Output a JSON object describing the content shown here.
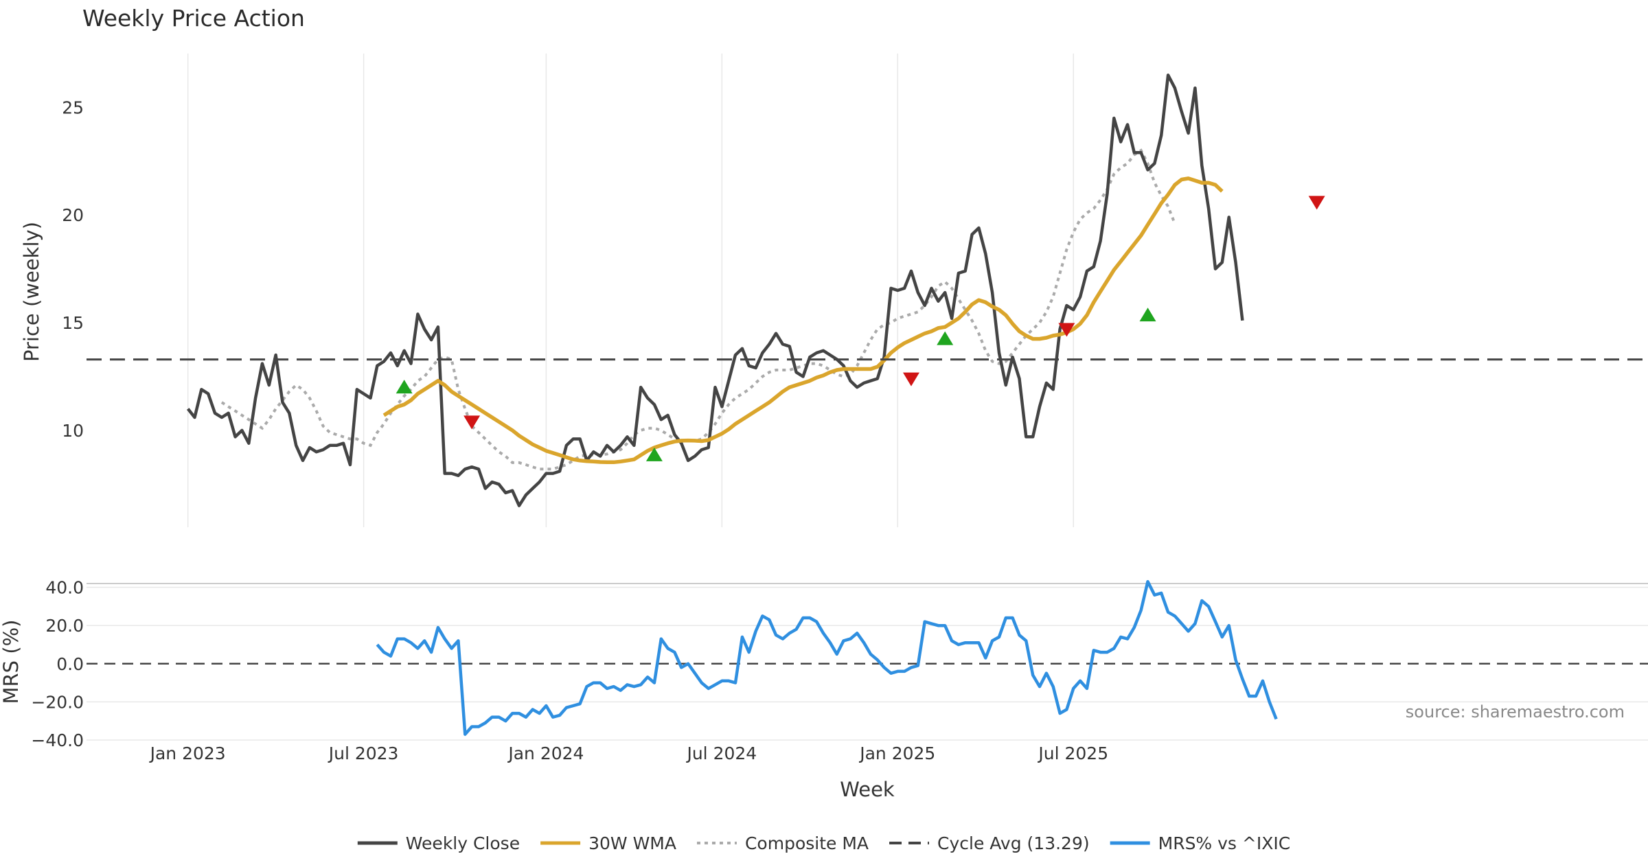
{
  "chart_data": [
    {
      "type": "line",
      "title": "Weekly Price Action",
      "ylabel": "Price (weekly)",
      "ylim": [
        5.5,
        27.5
      ],
      "yticks": [
        10,
        15,
        20,
        25
      ],
      "xlim": [
        -15,
        216
      ],
      "x_units": "weeks since Jan 2023",
      "vgrid_x": [
        0,
        26,
        53,
        79,
        105,
        131
      ],
      "series": [
        {
          "name": "Weekly Close",
          "color": "#444444",
          "values": [
            11.0,
            10.6,
            11.9,
            11.7,
            10.8,
            10.6,
            10.8,
            9.7,
            10.0,
            9.4,
            11.5,
            13.1,
            12.1,
            13.5,
            11.3,
            10.8,
            9.3,
            8.6,
            9.2,
            9.0,
            9.1,
            9.3,
            9.3,
            9.4,
            8.4,
            11.9,
            11.7,
            11.5,
            13.0,
            13.2,
            13.6,
            13.0,
            13.7,
            13.1,
            15.4,
            14.7,
            14.2,
            14.8,
            8.0,
            8.0,
            7.9,
            8.2,
            8.3,
            8.2,
            7.3,
            7.6,
            7.5,
            7.1,
            7.2,
            6.5,
            7.0,
            7.3,
            7.6,
            8.0,
            8.0,
            8.1,
            9.3,
            9.6,
            9.6,
            8.6,
            9.0,
            8.8,
            9.3,
            9.0,
            9.3,
            9.7,
            9.3,
            12.0,
            11.5,
            11.2,
            10.5,
            10.7,
            9.8,
            9.4,
            8.6,
            8.8,
            9.1,
            9.2,
            12.0,
            11.1,
            12.3,
            13.5,
            13.8,
            13.0,
            12.9,
            13.6,
            14.0,
            14.5,
            14.0,
            13.9,
            12.7,
            12.5,
            13.4,
            13.6,
            13.7,
            13.5,
            13.3,
            13.0,
            12.3,
            12.0,
            12.2,
            12.3,
            12.4,
            13.4,
            16.6,
            16.5,
            16.6,
            17.4,
            16.4,
            15.8,
            16.6,
            16.0,
            16.4,
            15.2,
            17.3,
            17.4,
            19.1,
            19.4,
            18.2,
            16.4,
            13.6,
            12.1,
            13.4,
            12.4,
            9.7,
            9.7,
            11.1,
            12.2,
            11.9,
            14.7,
            15.8,
            15.6,
            16.2,
            17.4,
            17.6,
            18.8,
            21.0,
            24.5,
            23.4,
            24.2,
            22.9,
            22.9,
            22.1,
            22.4,
            23.7,
            26.5,
            25.9,
            24.8,
            23.8,
            25.9,
            22.3,
            20.3,
            17.5,
            17.8,
            19.9,
            17.8,
            15.1
          ]
        },
        {
          "name": "30W WMA",
          "color": "#DAA52C",
          "start_index": 29,
          "values": [
            10.7,
            10.9,
            11.1,
            11.2,
            11.4,
            11.7,
            11.9,
            12.1,
            12.3,
            12.1,
            11.8,
            11.6,
            11.4,
            11.2,
            11.0,
            10.8,
            10.6,
            10.4,
            10.2,
            10.0,
            9.75,
            9.55,
            9.35,
            9.2,
            9.05,
            8.95,
            8.85,
            8.75,
            8.65,
            8.6,
            8.57,
            8.55,
            8.53,
            8.52,
            8.52,
            8.55,
            8.6,
            8.65,
            8.85,
            9.05,
            9.2,
            9.3,
            9.4,
            9.48,
            9.52,
            9.53,
            9.52,
            9.5,
            9.55,
            9.7,
            9.85,
            10.05,
            10.3,
            10.5,
            10.7,
            10.9,
            11.1,
            11.3,
            11.55,
            11.8,
            12.0,
            12.1,
            12.2,
            12.3,
            12.45,
            12.55,
            12.7,
            12.8,
            12.85,
            12.85,
            12.85,
            12.85,
            12.85,
            12.95,
            13.25,
            13.6,
            13.85,
            14.05,
            14.2,
            14.35,
            14.5,
            14.6,
            14.75,
            14.8,
            15.0,
            15.2,
            15.5,
            15.85,
            16.05,
            15.95,
            15.75,
            15.6,
            15.35,
            14.95,
            14.6,
            14.4,
            14.25,
            14.25,
            14.3,
            14.4,
            14.45,
            14.55,
            14.7,
            14.95,
            15.35,
            15.95,
            16.45,
            16.95,
            17.45,
            17.85,
            18.25,
            18.65,
            19.05,
            19.55,
            20.05,
            20.55,
            20.95,
            21.4,
            21.65,
            21.7,
            21.6,
            21.5,
            21.5,
            21.4,
            21.1
          ]
        },
        {
          "name": "Composite MA",
          "color": "#AAAAAA",
          "start_index": 5,
          "values": [
            11.3,
            11.1,
            10.9,
            10.7,
            10.5,
            10.3,
            10.1,
            10.5,
            11.0,
            11.4,
            11.8,
            12.1,
            11.9,
            11.5,
            10.9,
            10.2,
            9.9,
            9.8,
            9.7,
            9.6,
            9.6,
            9.4,
            9.3,
            9.9,
            10.3,
            10.8,
            11.2,
            11.6,
            11.9,
            12.3,
            12.5,
            12.9,
            13.3,
            13.4,
            13.3,
            11.9,
            11.0,
            10.2,
            9.9,
            9.6,
            9.3,
            9.0,
            8.8,
            8.5,
            8.5,
            8.4,
            8.3,
            8.2,
            8.2,
            8.2,
            8.3,
            8.4,
            8.6,
            8.8,
            8.85,
            8.85,
            8.85,
            8.9,
            9.0,
            9.1,
            9.4,
            9.8,
            10.0,
            10.1,
            10.1,
            10.0,
            9.8,
            9.6,
            9.5,
            9.5,
            9.5,
            9.6,
            9.9,
            10.3,
            10.8,
            11.2,
            11.5,
            11.7,
            11.9,
            12.2,
            12.5,
            12.7,
            12.8,
            12.8,
            12.8,
            12.9,
            13.0,
            13.1,
            13.1,
            13.0,
            12.8,
            12.6,
            12.5,
            12.6,
            13.0,
            13.6,
            14.2,
            14.7,
            14.9,
            15.0,
            15.2,
            15.3,
            15.4,
            15.5,
            15.8,
            16.2,
            16.7,
            16.9,
            16.6,
            16.1,
            15.6,
            15.1,
            14.5,
            13.7,
            13.2,
            13.1,
            13.2,
            13.6,
            14.0,
            14.4,
            14.7,
            15.0,
            15.5,
            16.2,
            17.3,
            18.4,
            19.2,
            19.8,
            20.1,
            20.3,
            20.7,
            21.2,
            21.9,
            22.2,
            22.4,
            22.8,
            23.0,
            22.4,
            21.5,
            20.9,
            20.4,
            19.6
          ]
        },
        {
          "name": "Cycle Avg (13.29)",
          "color": "#444444",
          "style": "dashed",
          "value": 13.29
        }
      ],
      "buy_signals": [
        {
          "x": 32,
          "y": 12.0
        },
        {
          "x": 69,
          "y": 8.85
        },
        {
          "x": 112,
          "y": 14.25
        },
        {
          "x": 142,
          "y": 15.35
        }
      ],
      "sell_signals": [
        {
          "x": 42,
          "y": 10.4
        },
        {
          "x": 107,
          "y": 12.4
        },
        {
          "x": 130,
          "y": 14.7
        },
        {
          "x": 167,
          "y": 20.6
        }
      ]
    },
    {
      "type": "line",
      "xlabel": "Week",
      "ylabel": "MRS (%)",
      "ylim": [
        -40,
        42
      ],
      "yticks": [
        "40.0",
        "20.0",
        "0.0",
        "−20.0",
        "−40.0"
      ],
      "ytick_values": [
        40,
        20,
        0,
        -20,
        -40
      ],
      "xticks": [
        "Jan 2023",
        "Jul 2023",
        "Jan 2024",
        "Jul 2024",
        "Jan 2025",
        "Jul 2025"
      ],
      "xtick_values": [
        0,
        26,
        53,
        79,
        105,
        131
      ],
      "zero_line": 0,
      "series": [
        {
          "name": "MRS% vs ^IXIC",
          "color": "#2F8FE0",
          "start_index": 28,
          "values": [
            10,
            6,
            4,
            13,
            13,
            11,
            8,
            12,
            6,
            19,
            13,
            8,
            12,
            -37,
            -33,
            -33,
            -31,
            -28,
            -28,
            -30,
            -26,
            -26,
            -28,
            -24,
            -26,
            -22,
            -28,
            -27,
            -23,
            -22,
            -21,
            -12,
            -10,
            -10,
            -13,
            -12,
            -14,
            -11,
            -12,
            -11,
            -7,
            -10,
            13,
            8,
            6,
            -2,
            0,
            -5,
            -10,
            -13,
            -11,
            -9,
            -9,
            -10,
            14,
            6,
            17,
            25,
            23,
            15,
            13,
            16,
            18,
            24,
            24,
            22,
            16,
            11,
            5,
            12,
            13,
            16,
            11,
            5,
            2,
            -2,
            -5,
            -4,
            -4,
            -2,
            -1,
            22,
            21,
            20,
            20,
            12,
            10,
            11,
            11,
            11,
            3,
            12,
            14,
            24,
            24,
            15,
            12,
            -6,
            -12,
            -5,
            -12,
            -26,
            -24,
            -13,
            -9,
            -13,
            7,
            6,
            6,
            8,
            14,
            13,
            19,
            28,
            43,
            36,
            37,
            27,
            25,
            21,
            17,
            21,
            33,
            30,
            22,
            14,
            20,
            2,
            -8,
            -17,
            -17,
            -9,
            -20,
            -29
          ]
        }
      ]
    }
  ],
  "source_text": "source: sharemaestro.com",
  "legend": [
    {
      "label": "Weekly Close",
      "color": "#444444",
      "style": "solid"
    },
    {
      "label": "30W WMA",
      "color": "#DAA52C",
      "style": "solid"
    },
    {
      "label": "Composite MA",
      "color": "#AAAAAA",
      "style": "dotted"
    },
    {
      "label": "Cycle Avg (13.29)",
      "color": "#444444",
      "style": "dashed"
    },
    {
      "label": "MRS% vs ^IXIC",
      "color": "#2F8FE0",
      "style": "solid"
    }
  ],
  "colors": {
    "buy": "#1FA51F",
    "sell": "#D01414",
    "grid": "#E8E8E8"
  }
}
